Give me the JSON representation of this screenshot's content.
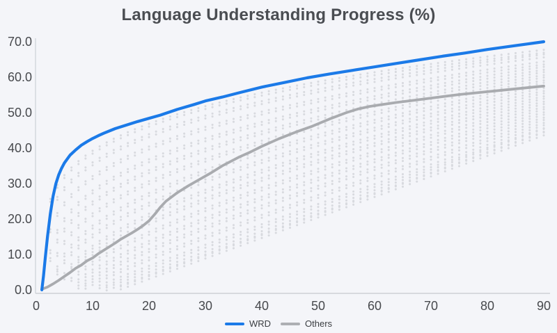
{
  "chart": {
    "title": "Language Understanding Progress (%)",
    "legend": {
      "items": [
        {
          "label": "WRD",
          "color": "#1b7ae8"
        },
        {
          "label": "Others",
          "color": "#adafb3"
        }
      ]
    }
  },
  "chart_data": {
    "type": "line",
    "title": "Language Understanding Progress (%)",
    "xlabel": "",
    "ylabel": "",
    "xlim": [
      0,
      90
    ],
    "ylim": [
      0,
      70
    ],
    "x_ticks": [
      "0",
      "10",
      "20",
      "30",
      "40",
      "50",
      "60",
      "70",
      "80",
      "90"
    ],
    "x_tick_values": [
      0,
      10,
      20,
      30,
      40,
      50,
      60,
      70,
      80,
      90
    ],
    "y_ticks": [
      "0.0",
      "10.0",
      "20.0",
      "30.0",
      "40.0",
      "50.0",
      "60.0",
      "70.0"
    ],
    "y_tick_values": [
      0,
      10,
      20,
      30,
      40,
      50,
      60,
      70
    ],
    "grid": false,
    "legend_position": "bottom",
    "colors": {
      "background": "#f4f5f9",
      "axis_line": "#cdd0d6",
      "tick_text": "#47494d",
      "wrd": "#1b7ae8",
      "others": "#a9abaf",
      "background_dots": "#d7d9de"
    },
    "series": [
      {
        "name": "WRD",
        "color": "#1b7ae8",
        "style": "solid",
        "points": [
          [
            1,
            0
          ],
          [
            1.3,
            4
          ],
          [
            1.6,
            9
          ],
          [
            2,
            15
          ],
          [
            2.5,
            21.5
          ],
          [
            3,
            26.5
          ],
          [
            3.5,
            30
          ],
          [
            4,
            32.5
          ],
          [
            4.5,
            34.3
          ],
          [
            5,
            35.8
          ],
          [
            6,
            38
          ],
          [
            7,
            39.5
          ],
          [
            8,
            40.8
          ],
          [
            9,
            41.8
          ],
          [
            10,
            42.7
          ],
          [
            11,
            43.5
          ],
          [
            12,
            44.2
          ],
          [
            14,
            45.5
          ],
          [
            16,
            46.5
          ],
          [
            18,
            47.5
          ],
          [
            20,
            48.4
          ],
          [
            22,
            49.3
          ],
          [
            25,
            50.9
          ],
          [
            28,
            52.3
          ],
          [
            30,
            53.3
          ],
          [
            33,
            54.4
          ],
          [
            36,
            55.6
          ],
          [
            40,
            57.2
          ],
          [
            44,
            58.5
          ],
          [
            48,
            59.8
          ],
          [
            52,
            60.9
          ],
          [
            56,
            61.9
          ],
          [
            60,
            62.9
          ],
          [
            64,
            63.9
          ],
          [
            68,
            64.9
          ],
          [
            72,
            65.9
          ],
          [
            76,
            66.8
          ],
          [
            80,
            67.8
          ],
          [
            85,
            68.9
          ],
          [
            90,
            70
          ]
        ]
      },
      {
        "name": "Others",
        "color": "#a9abaf",
        "style": "solid",
        "points": [
          [
            1,
            0.2
          ],
          [
            2,
            0.8
          ],
          [
            3,
            1.7
          ],
          [
            4,
            2.7
          ],
          [
            5,
            3.8
          ],
          [
            6,
            4.9
          ],
          [
            7,
            6.1
          ],
          [
            8,
            7
          ],
          [
            9,
            8.2
          ],
          [
            10,
            9
          ],
          [
            11,
            10.2
          ],
          [
            12,
            11.2
          ],
          [
            13,
            12.2
          ],
          [
            14,
            13.2
          ],
          [
            15,
            14.3
          ],
          [
            16,
            15.2
          ],
          [
            17,
            16.1
          ],
          [
            18,
            17.1
          ],
          [
            19,
            18.2
          ],
          [
            20,
            19.5
          ],
          [
            21,
            21.3
          ],
          [
            22,
            23.3
          ],
          [
            23,
            25
          ],
          [
            25,
            27.4
          ],
          [
            27,
            29.4
          ],
          [
            29,
            31.2
          ],
          [
            31,
            33
          ],
          [
            33,
            35
          ],
          [
            36,
            37.5
          ],
          [
            38,
            38.9
          ],
          [
            40,
            40.5
          ],
          [
            43,
            42.6
          ],
          [
            46,
            44.5
          ],
          [
            49,
            46.2
          ],
          [
            52,
            48.2
          ],
          [
            55,
            50
          ],
          [
            57,
            51
          ],
          [
            59,
            51.7
          ],
          [
            61,
            52.2
          ],
          [
            64,
            52.9
          ],
          [
            67,
            53.5
          ],
          [
            70,
            54.1
          ],
          [
            75,
            55.1
          ],
          [
            80,
            55.9
          ],
          [
            85,
            56.7
          ],
          [
            90,
            57.5
          ]
        ]
      }
    ],
    "background_runs": {
      "marker": "double-dot",
      "color": "#d7d9de",
      "x_step": 1.25,
      "runs": [
        {
          "end": 67.3,
          "onset": 1,
          "power": 0.24
        },
        {
          "end": 66,
          "onset": 1,
          "power": 0.27
        },
        {
          "end": 64,
          "onset": 1.5,
          "power": 0.3
        },
        {
          "end": 62.5,
          "onset": 2,
          "power": 0.34
        },
        {
          "end": 61,
          "onset": 2,
          "power": 0.38
        },
        {
          "end": 59.5,
          "onset": 2.5,
          "power": 0.42
        },
        {
          "end": 58,
          "onset": 3,
          "power": 0.47
        },
        {
          "end": 56.5,
          "onset": 3,
          "power": 0.52
        },
        {
          "end": 55,
          "onset": 4,
          "power": 0.57
        },
        {
          "end": 53.5,
          "onset": 4,
          "power": 0.62
        },
        {
          "end": 52,
          "onset": 5,
          "power": 0.68
        },
        {
          "end": 50.5,
          "onset": 6,
          "power": 0.74
        },
        {
          "end": 49,
          "onset": 7,
          "power": 0.8
        },
        {
          "end": 47.5,
          "onset": 8,
          "power": 0.88
        },
        {
          "end": 46,
          "onset": 10,
          "power": 0.95
        },
        {
          "end": 45,
          "onset": 12,
          "power": 1.0
        },
        {
          "end": 44,
          "onset": 14,
          "power": 1.0
        }
      ]
    }
  }
}
